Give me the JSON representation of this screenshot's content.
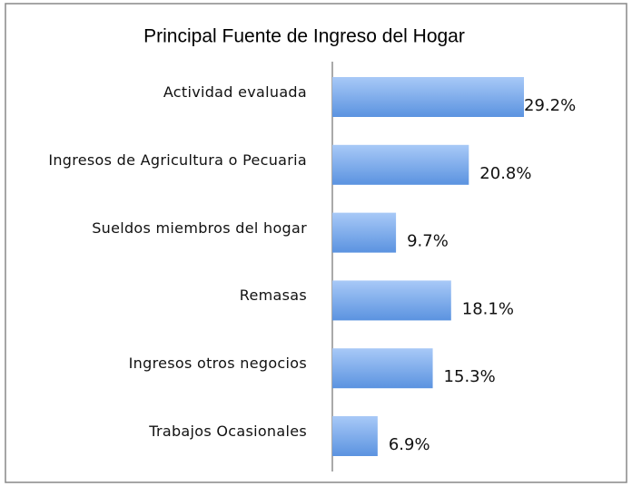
{
  "chart_data": {
    "type": "bar",
    "orientation": "horizontal",
    "title": "Principal Fuente de Ingreso del Hogar",
    "categories": [
      "Actividad evaluada",
      "Ingresos de Agricultura o Pecuaria",
      "Sueldos miembros del hogar",
      "Remasas",
      "Ingresos otros negocios",
      "Trabajos Ocasionales"
    ],
    "values": [
      29.2,
      20.8,
      9.7,
      18.1,
      15.3,
      6.9
    ],
    "value_labels": [
      "29.2%",
      "20.8%",
      "9.7%",
      "18.1%",
      "15.3%",
      "6.9%"
    ],
    "color": "#5b93e0"
  }
}
